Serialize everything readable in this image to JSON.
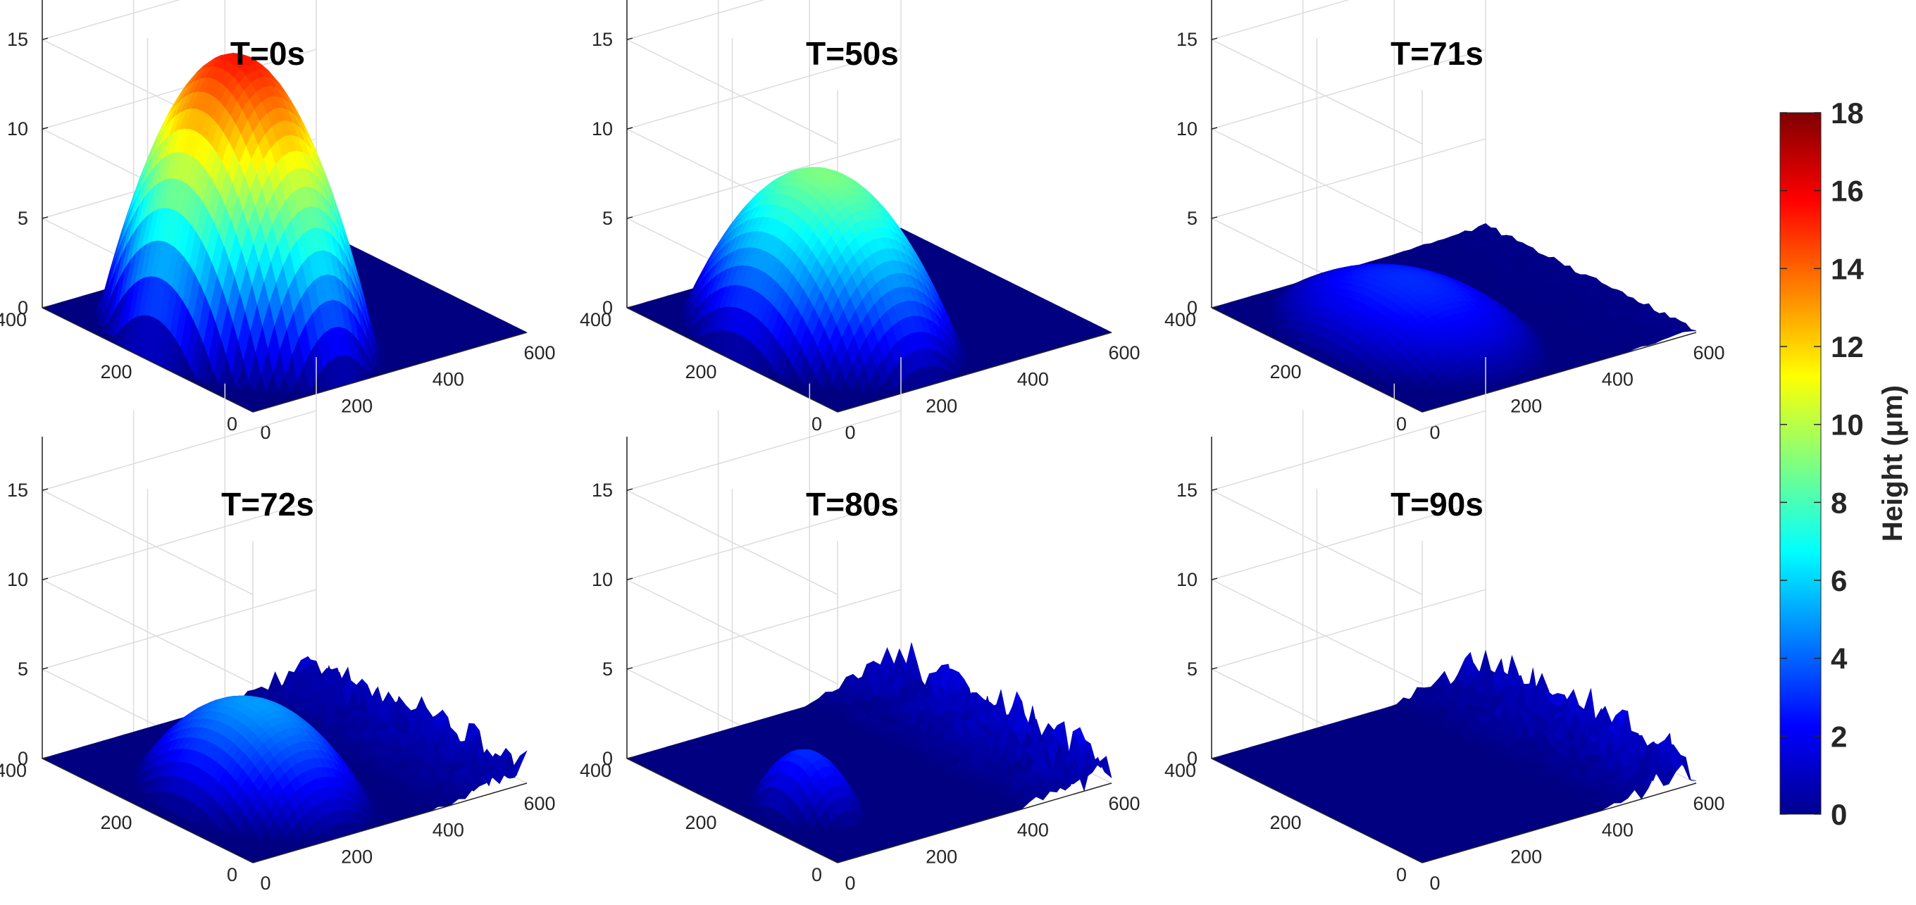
{
  "chart_data": {
    "type": "surface3d",
    "zlim": [
      0,
      18
    ],
    "x_range": [
      0,
      600
    ],
    "y_range": [
      0,
      400
    ],
    "z_ticks": [
      "0",
      "5",
      "10",
      "15"
    ],
    "x_ticks": [
      "0",
      "200",
      "400",
      "600"
    ],
    "y_ticks": [
      "0",
      "200",
      "400"
    ],
    "grid": true,
    "panels": [
      {
        "title": "T=0s",
        "drop_center_x": 200,
        "drop_center_y": 200,
        "drop_radius": 200,
        "peak_height": 15.5,
        "substrate_roughness": 0.0
      },
      {
        "title": "T=50s",
        "drop_center_x": 200,
        "drop_center_y": 200,
        "drop_radius": 200,
        "peak_height": 9.0,
        "substrate_roughness": 0.0
      },
      {
        "title": "T=71s",
        "drop_center_x": 200,
        "drop_center_y": 200,
        "drop_radius": 200,
        "peak_height": 3.0,
        "substrate_roughness": 0.3
      },
      {
        "title": "T=72s",
        "drop_center_x": 200,
        "drop_center_y": 170,
        "drop_radius": 170,
        "peak_height": 5.0,
        "substrate_roughness": 2.0
      },
      {
        "title": "T=80s",
        "drop_center_x": 120,
        "drop_center_y": 160,
        "drop_radius": 80,
        "peak_height": 3.0,
        "substrate_roughness": 2.5
      },
      {
        "title": "T=90s",
        "drop_center_x": 0,
        "drop_center_y": 0,
        "drop_radius": 0,
        "peak_height": 0.0,
        "substrate_roughness": 2.5
      }
    ],
    "colorbar": {
      "label": "Height (μm)",
      "colormap": "jet",
      "range": [
        0,
        18
      ],
      "ticks": [
        "0",
        "2",
        "4",
        "6",
        "8",
        "10",
        "12",
        "14",
        "16",
        "18"
      ]
    }
  },
  "colors": {
    "axis": "#262626",
    "grid": "#dcdcdc",
    "substrate": "#00008f"
  }
}
